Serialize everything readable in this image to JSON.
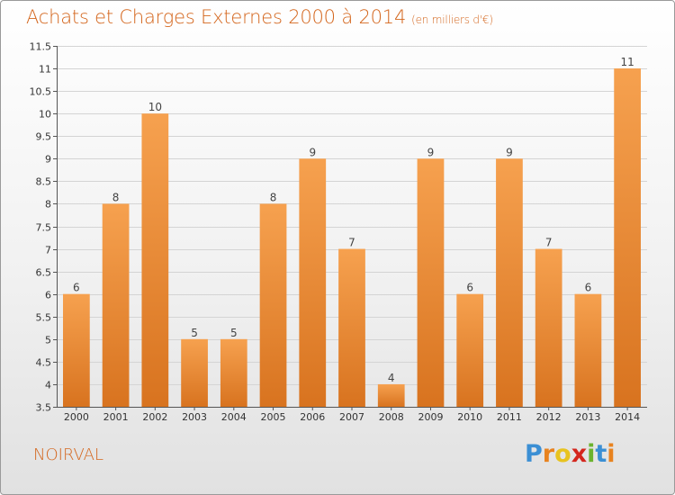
{
  "colors": {
    "accent": "#d4661d",
    "bar_light": "#f6a14f",
    "bar_dark": "#d8731f",
    "grid": "#d4d4d4",
    "axis": "#555555"
  },
  "header": {
    "title": "Achats et Charges Externes 2000 à 2014",
    "unit": "(en milliers d'€)"
  },
  "footer": {
    "commune": "NOIRVAL",
    "logo_letters": [
      {
        "char": "P",
        "color": "#3b8fd4"
      },
      {
        "char": "r",
        "color": "#e8831f"
      },
      {
        "char": "o",
        "color": "#e8c31f"
      },
      {
        "char": "x",
        "color": "#d4261d"
      },
      {
        "char": "i",
        "color": "#6bb32e"
      },
      {
        "char": "t",
        "color": "#3b8fd4"
      },
      {
        "char": "i",
        "color": "#e8831f"
      }
    ]
  },
  "chart_data": {
    "type": "bar",
    "title": "Achats et Charges Externes 2000 à 2014",
    "subtitle": "(en milliers d'€)",
    "xlabel": "",
    "ylabel": "",
    "categories": [
      "2000",
      "2001",
      "2002",
      "2003",
      "2004",
      "2005",
      "2006",
      "2007",
      "2008",
      "2009",
      "2010",
      "2011",
      "2012",
      "2013",
      "2014"
    ],
    "values": [
      6,
      8,
      10,
      5,
      5,
      8,
      9,
      7,
      4,
      9,
      6,
      9,
      7,
      6,
      11
    ],
    "value_labels": [
      "6",
      "8",
      "10",
      "5",
      "5",
      "8",
      "9",
      "7",
      "4",
      "9",
      "6",
      "9",
      "7",
      "6",
      "11"
    ],
    "ylim": [
      3.5,
      11.5
    ],
    "yticks": [
      3.5,
      4,
      4.5,
      5,
      5.5,
      6,
      6.5,
      7,
      7.5,
      8,
      8.5,
      9,
      9.5,
      10,
      10.5,
      11,
      11.5
    ],
    "ytick_labels": [
      "3.5",
      "4",
      "4.5",
      "5",
      "5.5",
      "6",
      "6.5",
      "7",
      "7.5",
      "8",
      "8.5",
      "9",
      "9.5",
      "10",
      "10.5",
      "11",
      "11.5"
    ],
    "grid": true,
    "legend": "none"
  }
}
